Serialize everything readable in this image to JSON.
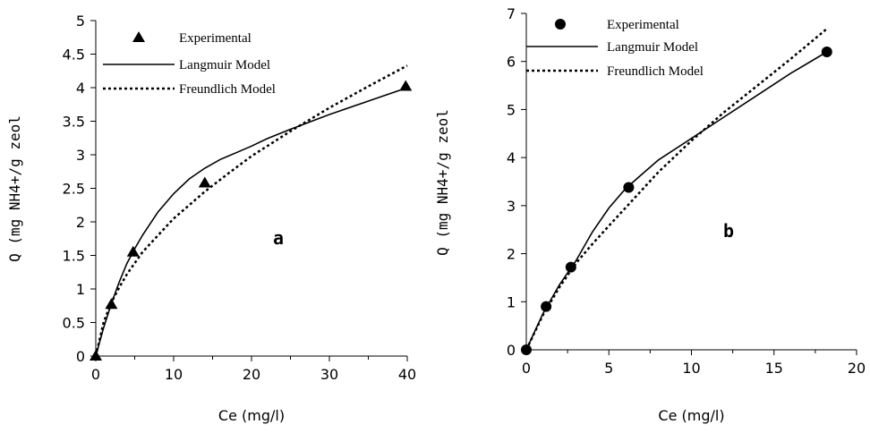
{
  "chart_data": [
    {
      "type": "line",
      "panel_label": "a",
      "xlabel": "Ce (mg/l)",
      "ylabel": "Q (mg NH4+/g zeol",
      "xlim": [
        0,
        40
      ],
      "ylim": [
        0,
        5
      ],
      "xticks": [
        0,
        10,
        20,
        30,
        40
      ],
      "xtick_labels": [
        "0",
        "10",
        "20",
        "30",
        "40"
      ],
      "yticks": [
        0,
        0.5,
        1,
        1.5,
        2,
        2.5,
        3,
        3.5,
        4,
        4.5,
        5
      ],
      "ytick_labels": [
        "0",
        "0.5",
        "1",
        "1.5",
        "2",
        "2.5",
        "3",
        "3.5",
        "4",
        "4.5",
        "5"
      ],
      "grid": false,
      "legend_position": "top",
      "series": [
        {
          "name": "Experimental",
          "style": "marker",
          "marker": "triangle",
          "x": [
            0,
            2,
            4.8,
            14,
            39.8
          ],
          "y": [
            0,
            0.77,
            1.55,
            2.58,
            4.02
          ]
        },
        {
          "name": "Langmuir Model",
          "style": "solid",
          "x": [
            0,
            1,
            2,
            3,
            4,
            5,
            6,
            8,
            10,
            12,
            14,
            16,
            18,
            20,
            22,
            25,
            30,
            35,
            40
          ],
          "y": [
            0,
            0.42,
            0.78,
            1.1,
            1.38,
            1.6,
            1.8,
            2.15,
            2.42,
            2.64,
            2.8,
            2.93,
            3.03,
            3.13,
            3.24,
            3.38,
            3.6,
            3.8,
            4.0
          ]
        },
        {
          "name": "Freundlich Model",
          "style": "dotted",
          "x": [
            0,
            1,
            2,
            3,
            4,
            6,
            8,
            10,
            12,
            14,
            17,
            20,
            25,
            30,
            35,
            40
          ],
          "y": [
            0,
            0.5,
            0.8,
            1.02,
            1.22,
            1.55,
            1.8,
            2.05,
            2.25,
            2.45,
            2.72,
            2.98,
            3.35,
            3.7,
            4.02,
            4.33
          ]
        }
      ]
    },
    {
      "type": "line",
      "panel_label": "b",
      "xlabel": "Ce (mg/l)",
      "ylabel": "Q (mg NH4+/g zeol",
      "xlim": [
        0,
        20
      ],
      "ylim": [
        0,
        7
      ],
      "xticks": [
        0,
        5,
        10,
        15,
        20
      ],
      "xtick_labels": [
        "0",
        "5",
        "10",
        "15",
        "20"
      ],
      "yticks": [
        0,
        1,
        2,
        3,
        4,
        5,
        6,
        7
      ],
      "ytick_labels": [
        "0",
        "1",
        "2",
        "3",
        "4",
        "5",
        "6",
        "7"
      ],
      "grid": false,
      "legend_position": "top",
      "series": [
        {
          "name": "Experimental",
          "style": "marker",
          "marker": "circle",
          "x": [
            0,
            1.2,
            2.7,
            6.2,
            18.2
          ],
          "y": [
            0,
            0.9,
            1.72,
            3.38,
            6.2
          ]
        },
        {
          "name": "Langmuir Model",
          "style": "solid",
          "x": [
            0,
            1,
            2,
            3,
            4,
            5,
            6,
            7,
            8,
            10,
            12,
            14,
            16,
            18.2
          ],
          "y": [
            0,
            0.75,
            1.35,
            1.85,
            2.45,
            2.95,
            3.35,
            3.65,
            3.95,
            4.4,
            4.85,
            5.3,
            5.75,
            6.2
          ]
        },
        {
          "name": "Freundlich Model",
          "style": "dotted",
          "x": [
            0,
            1,
            2,
            3,
            4,
            5,
            6,
            8,
            10,
            12,
            14,
            16,
            18.2
          ],
          "y": [
            0,
            0.72,
            1.3,
            1.8,
            2.2,
            2.58,
            2.95,
            3.7,
            4.35,
            4.95,
            5.5,
            6.05,
            6.68
          ]
        }
      ]
    }
  ]
}
